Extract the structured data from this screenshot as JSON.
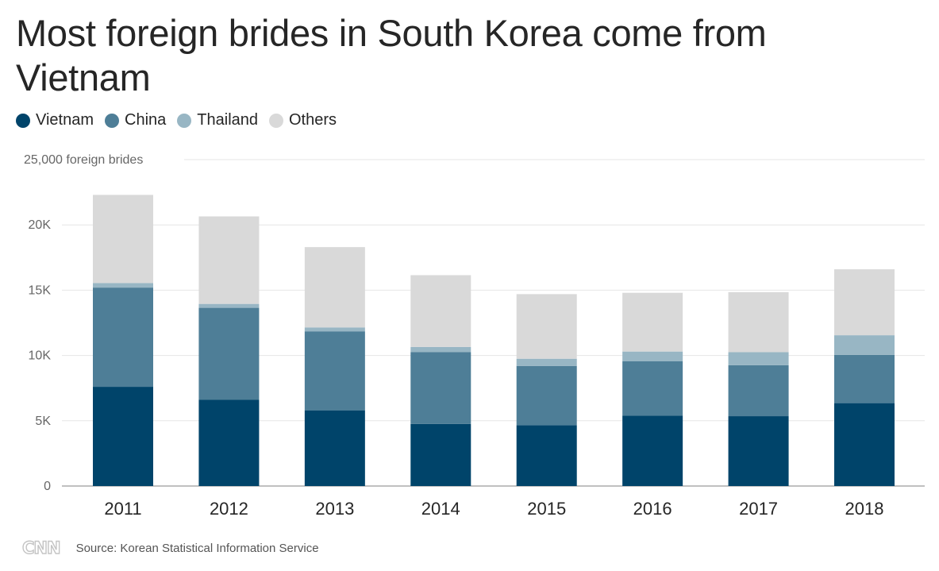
{
  "chart_data": {
    "type": "bar",
    "stacked": true,
    "title": "Most foreign brides in South Korea come from Vietnam",
    "y_unit_label": "foreign brides",
    "categories": [
      "2011",
      "2012",
      "2013",
      "2014",
      "2015",
      "2016",
      "2017",
      "2018"
    ],
    "series": [
      {
        "name": "Vietnam",
        "color": "#00446a",
        "values": [
          7600,
          6600,
          5800,
          4750,
          4650,
          5400,
          5350,
          6350
        ]
      },
      {
        "name": "China",
        "color": "#4e7e97",
        "values": [
          7600,
          7050,
          6050,
          5500,
          4550,
          4150,
          3900,
          3700
        ]
      },
      {
        "name": "Thailand",
        "color": "#98b6c4",
        "values": [
          350,
          300,
          300,
          400,
          550,
          750,
          1000,
          1500
        ]
      },
      {
        "name": "Others",
        "color": "#d9d9d9",
        "values": [
          6750,
          6700,
          6150,
          5500,
          4950,
          4500,
          4600,
          5050
        ]
      }
    ],
    "y_ticks": [
      {
        "value": 0,
        "label": "0"
      },
      {
        "value": 5000,
        "label": "5K"
      },
      {
        "value": 10000,
        "label": "10K"
      },
      {
        "value": 15000,
        "label": "15K"
      },
      {
        "value": 20000,
        "label": "20K"
      },
      {
        "value": 25000,
        "label": "25,000 foreign brides"
      }
    ],
    "ylim": [
      0,
      25000
    ],
    "grid": true,
    "legend_position": "top-left"
  },
  "footer": {
    "logo_text": "CNN",
    "source": "Source: Korean Statistical Information Service"
  }
}
